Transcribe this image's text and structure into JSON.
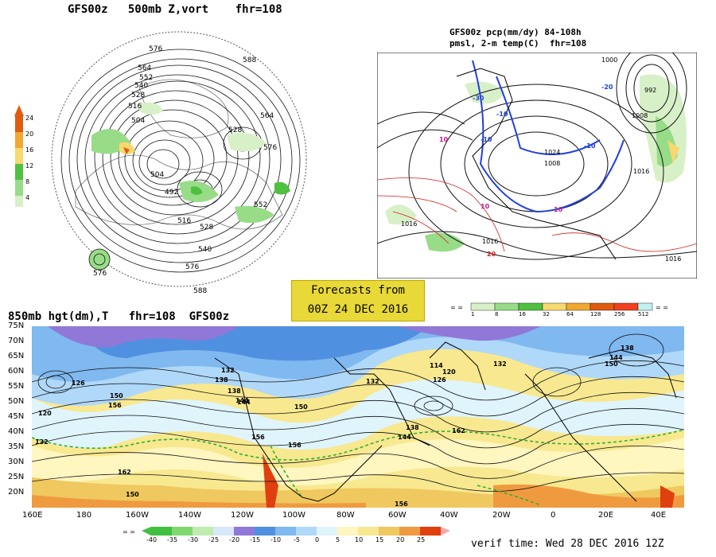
{
  "polar_panel": {
    "title": "GFS00z   500mb Z,vort    fhr=108",
    "legend_ticks": [
      "24",
      "20",
      "16",
      "12",
      "8",
      "4"
    ],
    "legend_colors": [
      "#e05a10",
      "#f0a830",
      "#f8d870",
      "#50c040",
      "#98dc88",
      "#d8f0c8"
    ],
    "contour_labels": [
      "576",
      "588",
      "564",
      "552",
      "540",
      "528",
      "516",
      "504",
      "528",
      "576",
      "564",
      "504",
      "492",
      "516",
      "528",
      "540",
      "552",
      "576",
      "588",
      "576"
    ]
  },
  "precip_panel": {
    "title_line1": "GFS00z pcp(mm/dy) 84-108h",
    "title_line2": "pmsl, 2-m temp(C)  fhr=108",
    "pressure_labels": [
      "1000",
      "992",
      "1008",
      "1016",
      "1024",
      "1016",
      "1016",
      "1016",
      "1008"
    ],
    "temp_labels": [
      "-30",
      "-20",
      "-10",
      "-10",
      "-10",
      "10",
      "10",
      "20",
      "10"
    ],
    "legend_ticks": [
      "1",
      "8",
      "16",
      "32",
      "64",
      "128",
      "256",
      "512"
    ],
    "legend_colors": [
      "#d8f0c8",
      "#98dc88",
      "#50c040",
      "#f8d870",
      "#f0a830",
      "#e05a10",
      "#f04020",
      "#c0f0f0"
    ]
  },
  "forecast_box": {
    "line1": "Forecasts from",
    "line2": "00Z 24 DEC 2016",
    "bg_color": "#e8d838"
  },
  "main_panel": {
    "title": "850mb hgt(dm),T   fhr=108  GFS00z",
    "lat_labels": [
      "75N",
      "70N",
      "65N",
      "60N",
      "55N",
      "50N",
      "45N",
      "40N",
      "35N",
      "30N",
      "25N",
      "20N"
    ],
    "lon_labels": [
      "160E",
      "180",
      "160W",
      "140W",
      "120W",
      "100W",
      "80W",
      "60W",
      "40W",
      "20W",
      "0",
      "20E",
      "40E"
    ],
    "contour_labels": [
      "120",
      "126",
      "132",
      "138",
      "144",
      "150",
      "156",
      "162",
      "132",
      "138",
      "144",
      "150",
      "156",
      "132",
      "138",
      "144",
      "150",
      "156",
      "162",
      "156",
      "150",
      "144",
      "138",
      "132",
      "126",
      "120",
      "114"
    ],
    "temp_colors": [
      "#40c040",
      "#80d870",
      "#c0ecb0",
      "#d8e8f8",
      "#9078d8",
      "#5090e0",
      "#80b8f0",
      "#b0d8f8",
      "#e0f4fc",
      "#fff6c0",
      "#f8e890",
      "#f0c860",
      "#f09a40",
      "#e04010"
    ],
    "legend_ticks": [
      "-40",
      "-35",
      "-30",
      "-25",
      "-20",
      "-15",
      "-10",
      "-5",
      "0",
      "5",
      "10",
      "15",
      "20",
      "25"
    ]
  },
  "verif_time": "verif time: Wed 28 DEC 2016 12Z"
}
